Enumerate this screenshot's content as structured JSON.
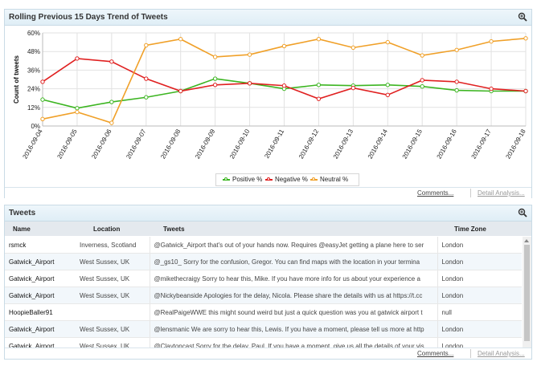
{
  "chart_panel": {
    "title": "Rolling Previous 15 Days Trend of Tweets",
    "footer": {
      "comments": "Comments...",
      "detail": "Detail Analysis..."
    }
  },
  "tweets_panel": {
    "title": "Tweets",
    "columns": [
      "Name",
      "Location",
      "Tweets",
      "Time Zone"
    ],
    "rows": [
      {
        "name": "rsmck",
        "location": "Inverness, Scotland",
        "tweet": "@Gatwick_Airport that's out of your hands now. Requires @easyJet getting a plane here to ser",
        "tz": "London"
      },
      {
        "name": "Gatwick_Airport",
        "location": "West Sussex, UK",
        "tweet": "@_gs10_ Sorry for the confusion, Gregor. You can find maps with the location in your termina",
        "tz": "London"
      },
      {
        "name": "Gatwick_Airport",
        "location": "West Sussex, UK",
        "tweet": "@mikethecraigy Sorry to hear this, Mike. If you have more info for us about your experience a",
        "tz": "London"
      },
      {
        "name": "Gatwick_Airport",
        "location": "West Sussex, UK",
        "tweet": "@Nickybeanside Apologies for the delay, Nicola. Please share the details with us at https://t.cc",
        "tz": "London"
      },
      {
        "name": "HoopieBaller91",
        "location": "",
        "tweet": "@RealPaigeWWE this might sound weird but just a quick question was you at gatwick airport t",
        "tz": "null"
      },
      {
        "name": "Gatwick_Airport",
        "location": "West Sussex, UK",
        "tweet": "@lensmanic We are sorry to hear this, Lewis. If you have a moment, please tell us more at http",
        "tz": "London"
      },
      {
        "name": "Gatwick_Airport",
        "location": "West Sussex, UK",
        "tweet": "@Claytoncast Sorry for the delay, Paul. If you have a moment, give us all the details of your vis",
        "tz": "London"
      }
    ],
    "footer": {
      "comments": "Comments...",
      "detail": "Detail Analysis..."
    }
  },
  "chart_data": {
    "type": "line",
    "title": "Rolling Previous 15 Days Trend of Tweets",
    "ylabel": "Count of tweets",
    "xlabel": "",
    "ylim": [
      0,
      60
    ],
    "yticks": [
      "0%",
      "12%",
      "24%",
      "36%",
      "48%",
      "60%"
    ],
    "categories": [
      "2016-09-04",
      "2016-09-05",
      "2016-09-06",
      "2016-09-07",
      "2016-09-08",
      "2016-09-09",
      "2016-09-10",
      "2016-09-11",
      "2016-09-12",
      "2016-09-13",
      "2016-09-14",
      "2016-09-15",
      "2016-09-16",
      "2016-09-17",
      "2016-09-18"
    ],
    "series": [
      {
        "name": "Positive %",
        "color": "#3cb521",
        "values": [
          17,
          11.5,
          15.5,
          18.5,
          22.5,
          30.5,
          27.5,
          24,
          26.5,
          26,
          26.5,
          25.5,
          23,
          22.5,
          22.5
        ]
      },
      {
        "name": "Negative %",
        "color": "#e02020",
        "values": [
          28.5,
          43.5,
          41.5,
          30.5,
          22.5,
          26.5,
          27.5,
          26,
          17.5,
          24.5,
          20,
          29.5,
          28.5,
          24,
          22.5
        ]
      },
      {
        "name": "Neutral %",
        "color": "#f0a028",
        "values": [
          4.5,
          9,
          2,
          52,
          56,
          44.5,
          46,
          51.5,
          56,
          50.5,
          54,
          45.5,
          49,
          54.5,
          56.5
        ]
      }
    ],
    "grid": true,
    "legend_position": "bottom"
  }
}
